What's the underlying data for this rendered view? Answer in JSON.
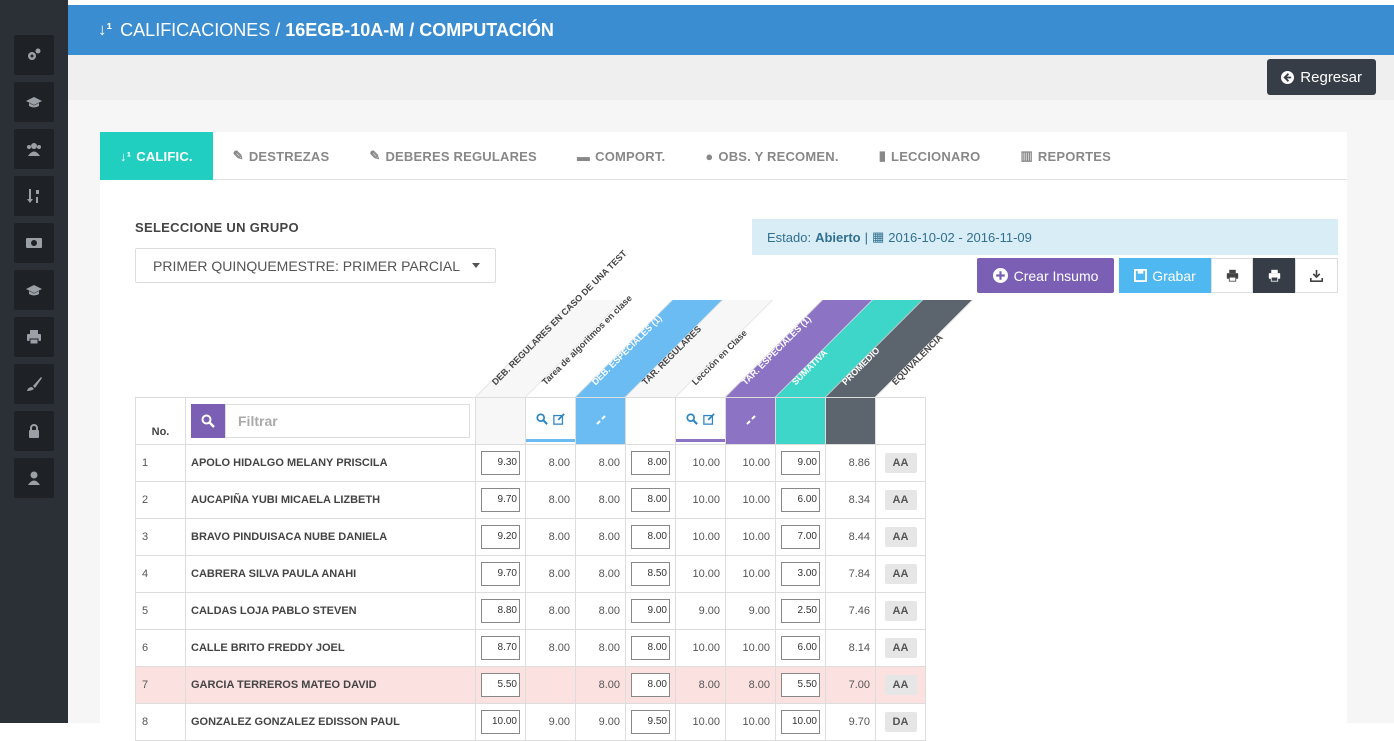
{
  "header": {
    "prefix": "CALIFICACIONES /",
    "course": "16EGB-10A-M",
    "subject": "/ COMPUTACIÓN"
  },
  "toolbar": {
    "back_label": "Regresar"
  },
  "tabs": [
    {
      "label": "CALIFIC.",
      "icon": "sort-icon"
    },
    {
      "label": "DESTREZAS",
      "icon": "edit-icon"
    },
    {
      "label": "DEBERES REGULARES",
      "icon": "edit-icon"
    },
    {
      "label": "COMPORT.",
      "icon": "comment-icon"
    },
    {
      "label": "OBS. Y RECOMEN.",
      "icon": "comments-icon"
    },
    {
      "label": "LECCIONARO",
      "icon": "book-icon"
    },
    {
      "label": "REPORTES",
      "icon": "chart-icon"
    }
  ],
  "group": {
    "label": "SELECCIONE UN GRUPO",
    "selected": "PRIMER QUINQUEMESTRE: PRIMER PARCIAL"
  },
  "estado": {
    "label": "Estado:",
    "value": "Abierto",
    "sep": "|",
    "dates": "2016-10-02 - 2016-11-09"
  },
  "actions": {
    "crear": "Crear Insumo",
    "grabar": "Grabar"
  },
  "columns": [
    {
      "label": "DEB. REGULARES EN CASO DE UNA TEST",
      "color": "#f7f7f7",
      "text": "#444"
    },
    {
      "label": "Tarea de algoritmos en clase",
      "color": "#ffffff",
      "text": "#444"
    },
    {
      "label": "DEB. ESPECIALES (1)",
      "color": "#6bbcf2",
      "text": "#ffffff"
    },
    {
      "label": "TAR. REGULARES",
      "color": "#f7f7f7",
      "text": "#444"
    },
    {
      "label": "Lección en Clase",
      "color": "#ffffff",
      "text": "#444"
    },
    {
      "label": "TAR. ESPECIALES (1)",
      "color": "#8c73c4",
      "text": "#ffffff"
    },
    {
      "label": "SUMATIVA",
      "color": "#3dd6c8",
      "text": "#ffffff"
    },
    {
      "label": "PROMEDIO",
      "color": "#5c656d",
      "text": "#ffffff"
    },
    {
      "label": "EQUIVALENCIA",
      "color": "#ffffff",
      "text": "#444"
    }
  ],
  "table": {
    "no_header": "No.",
    "filter_placeholder": "Filtrar",
    "rows": [
      {
        "no": "1",
        "name": "APOLO HIDALGO MELANY PRISCILA",
        "c1": "9.30",
        "c2": "8.00",
        "c3": "8.00",
        "c4": "8.00",
        "c5": "10.00",
        "c6": "10.00",
        "c7": "9.00",
        "c8": "8.86",
        "eq": "AA"
      },
      {
        "no": "2",
        "name": "AUCAPIÑA YUBI MICAELA LIZBETH",
        "c1": "9.70",
        "c2": "8.00",
        "c3": "8.00",
        "c4": "8.00",
        "c5": "10.00",
        "c6": "10.00",
        "c7": "6.00",
        "c8": "8.34",
        "eq": "AA"
      },
      {
        "no": "3",
        "name": "BRAVO PINDUISACA NUBE DANIELA",
        "c1": "9.20",
        "c2": "8.00",
        "c3": "8.00",
        "c4": "8.00",
        "c5": "10.00",
        "c6": "10.00",
        "c7": "7.00",
        "c8": "8.44",
        "eq": "AA"
      },
      {
        "no": "4",
        "name": "CABRERA SILVA PAULA ANAHI",
        "c1": "9.70",
        "c2": "8.00",
        "c3": "8.00",
        "c4": "8.50",
        "c5": "10.00",
        "c6": "10.00",
        "c7": "3.00",
        "c8": "7.84",
        "eq": "AA"
      },
      {
        "no": "5",
        "name": "CALDAS LOJA PABLO STEVEN",
        "c1": "8.80",
        "c2": "8.00",
        "c3": "8.00",
        "c4": "9.00",
        "c5": "9.00",
        "c6": "9.00",
        "c7": "2.50",
        "c8": "7.46",
        "eq": "AA"
      },
      {
        "no": "6",
        "name": "CALLE BRITO FREDDY JOEL",
        "c1": "8.70",
        "c2": "8.00",
        "c3": "8.00",
        "c4": "8.00",
        "c5": "10.00",
        "c6": "10.00",
        "c7": "6.00",
        "c8": "8.14",
        "eq": "AA"
      },
      {
        "no": "7",
        "name": "GARCIA TERREROS MATEO DAVID",
        "c1": "5.50",
        "c2": "",
        "c3": "8.00",
        "c4": "8.00",
        "c5": "8.00",
        "c6": "8.00",
        "c7": "5.50",
        "c8": "7.00",
        "eq": "AA",
        "warn": true
      },
      {
        "no": "8",
        "name": "GONZALEZ GONZALEZ EDISSON PAUL",
        "c1": "10.00",
        "c2": "9.00",
        "c3": "9.00",
        "c4": "9.50",
        "c5": "10.00",
        "c6": "10.00",
        "c7": "10.00",
        "c8": "9.70",
        "eq": "DA"
      }
    ]
  }
}
